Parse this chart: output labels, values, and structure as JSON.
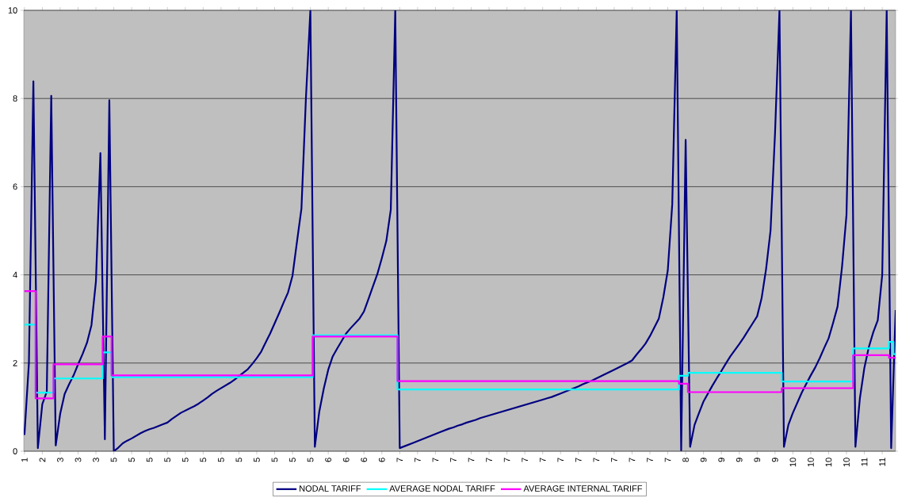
{
  "chart_data": {
    "type": "line",
    "categories": [
      "1",
      null,
      null,
      null,
      "2",
      null,
      null,
      null,
      "3",
      null,
      null,
      null,
      "3",
      null,
      null,
      null,
      "3",
      null,
      null,
      null,
      "5",
      null,
      null,
      null,
      "5",
      null,
      null,
      null,
      "5",
      null,
      null,
      null,
      "5",
      null,
      null,
      null,
      "5",
      null,
      null,
      null,
      "5",
      null,
      null,
      null,
      "5",
      null,
      null,
      null,
      "5",
      null,
      null,
      null,
      "5",
      null,
      null,
      null,
      "5",
      null,
      null,
      null,
      "5",
      null,
      null,
      null,
      "5",
      null,
      null,
      null,
      "6",
      null,
      null,
      null,
      "6",
      null,
      null,
      null,
      "6",
      null,
      null,
      null,
      "6",
      null,
      null,
      null,
      "7",
      null,
      null,
      null,
      "7",
      null,
      null,
      null,
      "7",
      null,
      null,
      null,
      "7",
      null,
      null,
      null,
      "7",
      null,
      null,
      null,
      "7",
      null,
      null,
      null,
      "7",
      null,
      null,
      null,
      "7",
      null,
      null,
      null,
      "7",
      null,
      null,
      null,
      "7",
      null,
      null,
      null,
      "7",
      null,
      null,
      null,
      "7",
      null,
      null,
      null,
      "7",
      null,
      null,
      null,
      "7",
      null,
      null,
      null,
      "7",
      null,
      null,
      null,
      "7",
      null,
      null,
      null,
      "8",
      null,
      null,
      null,
      "9",
      null,
      null,
      null,
      "9",
      null,
      null,
      null,
      "9",
      null,
      null,
      null,
      "9",
      null,
      null,
      null,
      "9",
      null,
      null,
      null,
      "10",
      null,
      null,
      null,
      "10",
      null,
      null,
      null,
      "10",
      null,
      null,
      null,
      "10",
      null,
      null,
      null,
      "11",
      null,
      null,
      null,
      "11",
      null,
      null,
      null
    ],
    "ylim": [
      0,
      10
    ],
    "yticks": [
      0,
      2,
      4,
      6,
      8,
      10
    ],
    "grid": "y",
    "legend": "bottom",
    "series": [
      {
        "name": "NODAL TARIFF",
        "color": "#000080",
        "values": [
          0.37,
          2.0,
          8.39,
          0.07,
          1.07,
          1.35,
          8.06,
          0.13,
          0.85,
          1.3,
          1.52,
          1.72,
          1.97,
          2.2,
          2.46,
          2.86,
          3.85,
          6.76,
          0.27,
          7.96,
          0,
          0.08,
          0.18,
          0.24,
          0.29,
          0.35,
          0.41,
          0.46,
          0.5,
          0.53,
          0.57,
          0.61,
          0.65,
          0.73,
          0.8,
          0.87,
          0.92,
          0.97,
          1.02,
          1.08,
          1.15,
          1.22,
          1.3,
          1.37,
          1.43,
          1.49,
          1.55,
          1.62,
          1.7,
          1.78,
          1.86,
          1.98,
          2.11,
          2.26,
          2.47,
          2.67,
          2.9,
          3.13,
          3.37,
          3.6,
          3.98,
          4.75,
          5.5,
          8.0,
          10,
          0.1,
          0.9,
          1.42,
          1.85,
          2.15,
          2.33,
          2.5,
          2.67,
          2.79,
          2.9,
          3.01,
          3.17,
          3.45,
          3.74,
          4.02,
          4.38,
          4.77,
          5.48,
          10,
          0.07,
          0.11,
          0.15,
          0.19,
          0.23,
          0.27,
          0.31,
          0.35,
          0.39,
          0.43,
          0.47,
          0.51,
          0.54,
          0.58,
          0.61,
          0.65,
          0.68,
          0.71,
          0.75,
          0.78,
          0.81,
          0.84,
          0.87,
          0.9,
          0.93,
          0.96,
          0.99,
          1.02,
          1.05,
          1.08,
          1.11,
          1.14,
          1.17,
          1.2,
          1.23,
          1.27,
          1.31,
          1.35,
          1.39,
          1.43,
          1.47,
          1.52,
          1.56,
          1.6,
          1.65,
          1.7,
          1.75,
          1.8,
          1.85,
          1.9,
          1.95,
          2.0,
          2.06,
          2.19,
          2.31,
          2.44,
          2.61,
          2.81,
          3.01,
          3.49,
          4.1,
          5.6,
          10,
          0.02,
          7.06,
          0.1,
          0.6,
          0.87,
          1.13,
          1.31,
          1.49,
          1.66,
          1.82,
          1.99,
          2.15,
          2.29,
          2.43,
          2.58,
          2.74,
          2.9,
          3.06,
          3.47,
          4.13,
          5.0,
          7.2,
          10,
          0.1,
          0.6,
          0.87,
          1.1,
          1.33,
          1.53,
          1.72,
          1.9,
          2.11,
          2.34,
          2.56,
          2.91,
          3.28,
          4.18,
          5.36,
          10,
          0.1,
          1.2,
          1.89,
          2.36,
          2.7,
          2.97,
          4.0,
          10,
          0.07,
          3.2
        ]
      },
      {
        "name": "AVERAGE NODAL TARIFF",
        "color": "#00ffff",
        "type": "step",
        "values": [
          2.87,
          2.87,
          2.87,
          1.33,
          1.33,
          1.33,
          1.33,
          1.65,
          1.65,
          1.65,
          1.65,
          1.65,
          1.65,
          1.65,
          1.65,
          1.65,
          1.65,
          1.65,
          2.24,
          2.24,
          1.68,
          1.68,
          1.68,
          1.68,
          1.68,
          1.68,
          1.68,
          1.68,
          1.68,
          1.68,
          1.68,
          1.68,
          1.68,
          1.68,
          1.68,
          1.68,
          1.68,
          1.68,
          1.68,
          1.68,
          1.68,
          1.68,
          1.68,
          1.68,
          1.68,
          1.68,
          1.68,
          1.68,
          1.68,
          1.68,
          1.68,
          1.68,
          1.68,
          1.68,
          1.68,
          1.68,
          1.68,
          1.68,
          1.68,
          1.68,
          1.68,
          1.68,
          1.68,
          1.68,
          1.68,
          2.63,
          2.63,
          2.63,
          2.63,
          2.63,
          2.63,
          2.63,
          2.63,
          2.63,
          2.63,
          2.63,
          2.63,
          2.63,
          2.63,
          2.63,
          2.63,
          2.63,
          2.63,
          2.63,
          1.4,
          1.4,
          1.4,
          1.4,
          1.4,
          1.4,
          1.4,
          1.4,
          1.4,
          1.4,
          1.4,
          1.4,
          1.4,
          1.4,
          1.4,
          1.4,
          1.4,
          1.4,
          1.4,
          1.4,
          1.4,
          1.4,
          1.4,
          1.4,
          1.4,
          1.4,
          1.4,
          1.4,
          1.4,
          1.4,
          1.4,
          1.4,
          1.4,
          1.4,
          1.4,
          1.4,
          1.4,
          1.4,
          1.4,
          1.4,
          1.4,
          1.4,
          1.4,
          1.4,
          1.4,
          1.4,
          1.4,
          1.4,
          1.4,
          1.4,
          1.4,
          1.4,
          1.4,
          1.4,
          1.4,
          1.4,
          1.4,
          1.4,
          1.4,
          1.4,
          1.4,
          1.4,
          1.4,
          1.71,
          1.71,
          1.78,
          1.78,
          1.78,
          1.78,
          1.78,
          1.78,
          1.78,
          1.78,
          1.78,
          1.78,
          1.78,
          1.78,
          1.78,
          1.78,
          1.78,
          1.78,
          1.78,
          1.78,
          1.78,
          1.78,
          1.78,
          1.58,
          1.58,
          1.58,
          1.58,
          1.58,
          1.58,
          1.58,
          1.58,
          1.58,
          1.58,
          1.58,
          1.58,
          1.58,
          1.58,
          1.58,
          1.58,
          2.33,
          2.33,
          2.33,
          2.33,
          2.33,
          2.33,
          2.33,
          2.33,
          2.48,
          2.2
        ]
      },
      {
        "name": "AVERAGE INTERNAL TARIFF",
        "color": "#ff00ff",
        "type": "step",
        "values": [
          3.63,
          3.63,
          3.63,
          1.2,
          1.2,
          1.2,
          1.2,
          1.97,
          1.97,
          1.97,
          1.97,
          1.97,
          1.97,
          1.97,
          1.97,
          1.97,
          1.97,
          1.97,
          2.6,
          2.6,
          1.72,
          1.72,
          1.72,
          1.72,
          1.72,
          1.72,
          1.72,
          1.72,
          1.72,
          1.72,
          1.72,
          1.72,
          1.72,
          1.72,
          1.72,
          1.72,
          1.72,
          1.72,
          1.72,
          1.72,
          1.72,
          1.72,
          1.72,
          1.72,
          1.72,
          1.72,
          1.72,
          1.72,
          1.72,
          1.72,
          1.72,
          1.72,
          1.72,
          1.72,
          1.72,
          1.72,
          1.72,
          1.72,
          1.72,
          1.72,
          1.72,
          1.72,
          1.72,
          1.72,
          1.72,
          2.6,
          2.6,
          2.6,
          2.6,
          2.6,
          2.6,
          2.6,
          2.6,
          2.6,
          2.6,
          2.6,
          2.6,
          2.6,
          2.6,
          2.6,
          2.6,
          2.6,
          2.6,
          2.6,
          1.59,
          1.59,
          1.59,
          1.59,
          1.59,
          1.59,
          1.59,
          1.59,
          1.59,
          1.59,
          1.59,
          1.59,
          1.59,
          1.59,
          1.59,
          1.59,
          1.59,
          1.59,
          1.59,
          1.59,
          1.59,
          1.59,
          1.59,
          1.59,
          1.59,
          1.59,
          1.59,
          1.59,
          1.59,
          1.59,
          1.59,
          1.59,
          1.59,
          1.59,
          1.59,
          1.59,
          1.59,
          1.59,
          1.59,
          1.59,
          1.59,
          1.59,
          1.59,
          1.59,
          1.59,
          1.59,
          1.59,
          1.59,
          1.59,
          1.59,
          1.59,
          1.59,
          1.59,
          1.59,
          1.59,
          1.59,
          1.59,
          1.59,
          1.59,
          1.59,
          1.59,
          1.59,
          1.59,
          1.53,
          1.53,
          1.34,
          1.34,
          1.34,
          1.34,
          1.34,
          1.34,
          1.34,
          1.34,
          1.34,
          1.34,
          1.34,
          1.34,
          1.34,
          1.34,
          1.34,
          1.34,
          1.34,
          1.34,
          1.34,
          1.34,
          1.34,
          1.43,
          1.43,
          1.43,
          1.43,
          1.43,
          1.43,
          1.43,
          1.43,
          1.43,
          1.43,
          1.43,
          1.43,
          1.43,
          1.43,
          1.43,
          1.43,
          2.18,
          2.18,
          2.18,
          2.18,
          2.18,
          2.18,
          2.18,
          2.18,
          2.12,
          2.12
        ]
      }
    ]
  }
}
